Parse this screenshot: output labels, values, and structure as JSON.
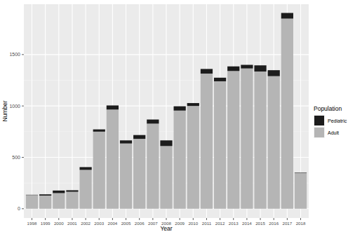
{
  "chart_data": {
    "type": "bar",
    "stacked": true,
    "grid": true,
    "legend": "right",
    "x_label": "Year",
    "y_label": "Number",
    "legend_title": "Population",
    "categories": [
      "1998",
      "1999",
      "2000",
      "2001",
      "2002",
      "2003",
      "2004",
      "2005",
      "2006",
      "2007",
      "2008",
      "2009",
      "2010",
      "2011",
      "2012",
      "2013",
      "2014",
      "2015",
      "2016",
      "2017",
      "2018"
    ],
    "series": [
      {
        "name": "Adult",
        "color": "#b5b5b5",
        "values": [
          133,
          128,
          152,
          165,
          378,
          750,
          965,
          635,
          680,
          828,
          610,
          955,
          1000,
          1315,
          1240,
          1340,
          1365,
          1335,
          1290,
          1850,
          348
        ]
      },
      {
        "name": "Pediatric",
        "color": "#1c1c1c",
        "values": [
          3,
          12,
          25,
          15,
          27,
          22,
          40,
          30,
          37,
          40,
          55,
          42,
          28,
          45,
          35,
          45,
          35,
          60,
          58,
          55,
          4
        ]
      }
    ],
    "ylim": [
      -90,
      1990
    ],
    "yticks": [
      0,
      500,
      1000,
      1500
    ]
  }
}
